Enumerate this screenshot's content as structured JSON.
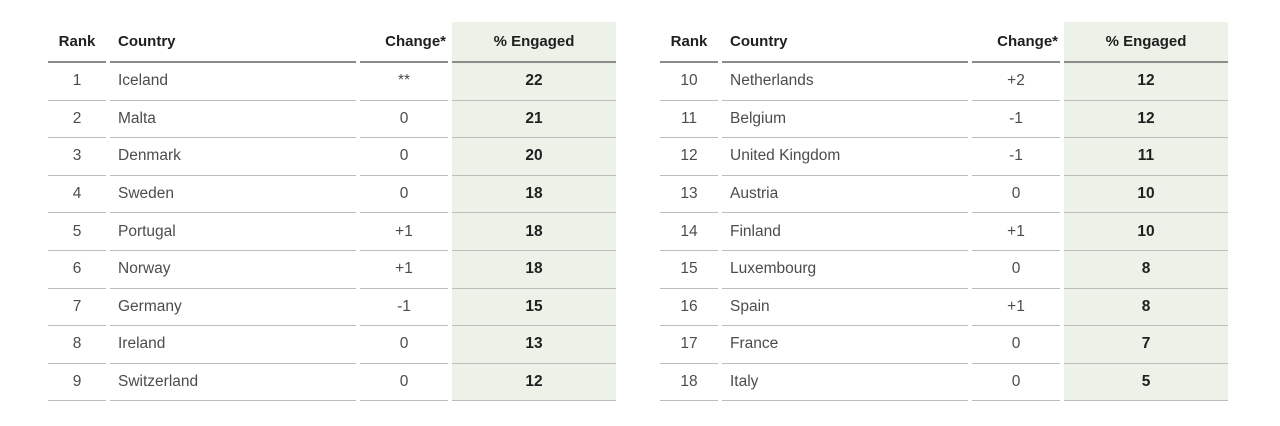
{
  "colors": {
    "engaged_bg": "#edf2e8"
  },
  "tables": [
    {
      "headers": {
        "rank": "Rank",
        "country": "Country",
        "change": "Change*",
        "engaged": "% Engaged"
      },
      "rows": [
        {
          "rank": "1",
          "country": "Iceland",
          "change": "**",
          "engaged": "22"
        },
        {
          "rank": "2",
          "country": "Malta",
          "change": "0",
          "engaged": "21"
        },
        {
          "rank": "3",
          "country": "Denmark",
          "change": "0",
          "engaged": "20"
        },
        {
          "rank": "4",
          "country": "Sweden",
          "change": "0",
          "engaged": "18"
        },
        {
          "rank": "5",
          "country": "Portugal",
          "change": "+1",
          "engaged": "18"
        },
        {
          "rank": "6",
          "country": "Norway",
          "change": "+1",
          "engaged": "18"
        },
        {
          "rank": "7",
          "country": "Germany",
          "change": "-1",
          "engaged": "15"
        },
        {
          "rank": "8",
          "country": "Ireland",
          "change": "0",
          "engaged": "13"
        },
        {
          "rank": "9",
          "country": "Switzerland",
          "change": "0",
          "engaged": "12"
        }
      ]
    },
    {
      "headers": {
        "rank": "Rank",
        "country": "Country",
        "change": "Change*",
        "engaged": "% Engaged"
      },
      "rows": [
        {
          "rank": "10",
          "country": "Netherlands",
          "change": "+2",
          "engaged": "12"
        },
        {
          "rank": "11",
          "country": "Belgium",
          "change": "-1",
          "engaged": "12"
        },
        {
          "rank": "12",
          "country": "United Kingdom",
          "change": "-1",
          "engaged": "11"
        },
        {
          "rank": "13",
          "country": "Austria",
          "change": "0",
          "engaged": "10"
        },
        {
          "rank": "14",
          "country": "Finland",
          "change": "+1",
          "engaged": "10"
        },
        {
          "rank": "15",
          "country": "Luxembourg",
          "change": "0",
          "engaged": "8"
        },
        {
          "rank": "16",
          "country": "Spain",
          "change": "+1",
          "engaged": "8"
        },
        {
          "rank": "17",
          "country": "France",
          "change": "0",
          "engaged": "7"
        },
        {
          "rank": "18",
          "country": "Italy",
          "change": "0",
          "engaged": "5"
        }
      ]
    }
  ]
}
